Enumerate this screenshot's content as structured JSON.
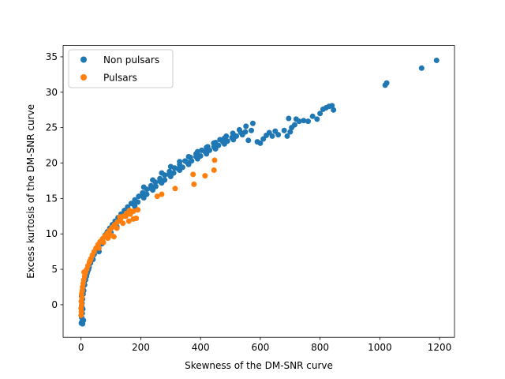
{
  "chart_data": {
    "type": "scatter",
    "title": "",
    "xlabel": "Skewness of the DM-SNR curve",
    "ylabel": "Excess kurtosis of the DM-SNR curve",
    "xlim": [
      -60,
      1250
    ],
    "ylim": [
      -4.6,
      36.6
    ],
    "xticks": [
      0,
      200,
      400,
      600,
      800,
      1000,
      1200
    ],
    "yticks": [
      0,
      5,
      10,
      15,
      20,
      25,
      30,
      35
    ],
    "grid": false,
    "legend_position": "upper-left",
    "series": [
      {
        "name": "Non pulsars",
        "color": "#1f77b4",
        "points": [
          [
            1,
            -2.6
          ],
          [
            3,
            -2.4
          ],
          [
            5,
            -2.7
          ],
          [
            8,
            -2.2
          ],
          [
            2,
            -1.8
          ],
          [
            4,
            -1.2
          ],
          [
            6,
            -0.6
          ],
          [
            3,
            0.2
          ],
          [
            5,
            0.8
          ],
          [
            7,
            1.5
          ],
          [
            9,
            2.0
          ],
          [
            12,
            2.8
          ],
          [
            15,
            3.5
          ],
          [
            18,
            4.0
          ],
          [
            22,
            4.7
          ],
          [
            27,
            5.3
          ],
          [
            32,
            5.9
          ],
          [
            38,
            6.5
          ],
          [
            44,
            7.1
          ],
          [
            50,
            7.6
          ],
          [
            57,
            8.2
          ],
          [
            64,
            8.7
          ],
          [
            72,
            9.3
          ],
          [
            80,
            9.8
          ],
          [
            88,
            10.3
          ],
          [
            96,
            10.8
          ],
          [
            105,
            11.3
          ],
          [
            114,
            11.8
          ],
          [
            124,
            12.3
          ],
          [
            134,
            12.8
          ],
          [
            145,
            13.3
          ],
          [
            156,
            13.8
          ],
          [
            168,
            14.3
          ],
          [
            180,
            14.8
          ],
          [
            193,
            15.3
          ],
          [
            206,
            15.8
          ],
          [
            220,
            16.3
          ],
          [
            234,
            16.8
          ],
          [
            249,
            17.3
          ],
          [
            264,
            17.8
          ],
          [
            280,
            18.3
          ],
          [
            296,
            18.8
          ],
          [
            313,
            19.3
          ],
          [
            330,
            19.8
          ],
          [
            348,
            20.3
          ],
          [
            366,
            20.8
          ],
          [
            385,
            21.3
          ],
          [
            404,
            21.8
          ],
          [
            424,
            22.3
          ],
          [
            444,
            22.8
          ],
          [
            465,
            23.3
          ],
          [
            486,
            23.8
          ],
          [
            508,
            24.2
          ],
          [
            530,
            24.7
          ],
          [
            552,
            25.2
          ],
          [
            575,
            25.6
          ],
          [
            60,
            7.5
          ],
          [
            90,
            9.5
          ],
          [
            120,
            11.0
          ],
          [
            150,
            12.6
          ],
          [
            180,
            13.9
          ],
          [
            210,
            15.1
          ],
          [
            240,
            16.2
          ],
          [
            270,
            17.2
          ],
          [
            300,
            18.1
          ],
          [
            330,
            19.0
          ],
          [
            360,
            19.8
          ],
          [
            390,
            20.6
          ],
          [
            420,
            21.3
          ],
          [
            450,
            22.0
          ],
          [
            480,
            22.7
          ],
          [
            510,
            23.3
          ],
          [
            540,
            24.0
          ],
          [
            570,
            24.6
          ],
          [
            40,
            6.4
          ],
          [
            70,
            8.6
          ],
          [
            100,
            10.2
          ],
          [
            130,
            11.9
          ],
          [
            160,
            13.1
          ],
          [
            190,
            14.5
          ],
          [
            220,
            15.6
          ],
          [
            250,
            16.7
          ],
          [
            280,
            17.6
          ],
          [
            310,
            18.6
          ],
          [
            340,
            19.4
          ],
          [
            370,
            20.3
          ],
          [
            400,
            21.0
          ],
          [
            430,
            21.8
          ],
          [
            460,
            22.5
          ],
          [
            490,
            23.1
          ],
          [
            520,
            23.8
          ],
          [
            550,
            24.4
          ],
          [
            25,
            5.0
          ],
          [
            55,
            7.9
          ],
          [
            85,
            10.0
          ],
          [
            115,
            11.6
          ],
          [
            145,
            12.9
          ],
          [
            175,
            14.2
          ],
          [
            205,
            15.4
          ],
          [
            235,
            16.4
          ],
          [
            265,
            17.4
          ],
          [
            295,
            18.4
          ],
          [
            325,
            19.2
          ],
          [
            355,
            20.1
          ],
          [
            385,
            20.9
          ],
          [
            415,
            21.6
          ],
          [
            445,
            22.3
          ],
          [
            475,
            23.0
          ],
          [
            505,
            23.6
          ],
          [
            535,
            24.3
          ],
          [
            210,
            16.6
          ],
          [
            240,
            17.6
          ],
          [
            270,
            18.6
          ],
          [
            300,
            19.5
          ],
          [
            330,
            20.2
          ],
          [
            360,
            20.9
          ],
          [
            390,
            21.6
          ],
          [
            420,
            22.2
          ],
          [
            450,
            22.9
          ],
          [
            480,
            23.5
          ],
          [
            560,
            23.2
          ],
          [
            590,
            23.0
          ],
          [
            600,
            22.8
          ],
          [
            610,
            23.4
          ],
          [
            620,
            23.9
          ],
          [
            630,
            24.3
          ],
          [
            640,
            23.8
          ],
          [
            650,
            24.5
          ],
          [
            660,
            24.0
          ],
          [
            680,
            24.6
          ],
          [
            690,
            23.8
          ],
          [
            700,
            24.4
          ],
          [
            705,
            25.0
          ],
          [
            715,
            25.4
          ],
          [
            730,
            25.9
          ],
          [
            745,
            26.0
          ],
          [
            760,
            25.9
          ],
          [
            775,
            26.6
          ],
          [
            790,
            26.2
          ],
          [
            800,
            27.0
          ],
          [
            810,
            27.6
          ],
          [
            820,
            27.8
          ],
          [
            830,
            28.0
          ],
          [
            840,
            28.1
          ],
          [
            845,
            27.5
          ],
          [
            720,
            26.2
          ],
          [
            695,
            26.3
          ],
          [
            1018,
            31.0
          ],
          [
            1023,
            31.3
          ],
          [
            1140,
            33.4
          ],
          [
            1190,
            34.5
          ],
          [
            2,
            -0.2
          ],
          [
            1,
            0.5
          ],
          [
            2,
            1.2
          ],
          [
            4,
            1.8
          ],
          [
            6,
            2.4
          ],
          [
            10,
            3.2
          ],
          [
            14,
            3.9
          ],
          [
            20,
            4.4
          ]
        ]
      },
      {
        "name": "Pulsars",
        "color": "#ff7f0e",
        "points": [
          [
            0,
            -1.5
          ],
          [
            1,
            -1.0
          ],
          [
            0,
            -0.5
          ],
          [
            2,
            0.0
          ],
          [
            1,
            0.5
          ],
          [
            3,
            1.0
          ],
          [
            2,
            1.5
          ],
          [
            4,
            2.0
          ],
          [
            5,
            2.5
          ],
          [
            7,
            3.0
          ],
          [
            9,
            3.5
          ],
          [
            12,
            4.0
          ],
          [
            15,
            4.5
          ],
          [
            19,
            5.0
          ],
          [
            23,
            5.5
          ],
          [
            28,
            6.0
          ],
          [
            33,
            6.5
          ],
          [
            38,
            7.0
          ],
          [
            44,
            7.5
          ],
          [
            50,
            8.0
          ],
          [
            57,
            8.5
          ],
          [
            64,
            8.9
          ],
          [
            72,
            9.3
          ],
          [
            80,
            9.7
          ],
          [
            88,
            10.1
          ],
          [
            96,
            10.5
          ],
          [
            104,
            10.9
          ],
          [
            113,
            11.3
          ],
          [
            122,
            11.7
          ],
          [
            132,
            12.1
          ],
          [
            142,
            12.5
          ],
          [
            152,
            12.9
          ],
          [
            162,
            13.3
          ],
          [
            175,
            13.2
          ],
          [
            190,
            13.4
          ],
          [
            120,
            10.8
          ],
          [
            140,
            11.5
          ],
          [
            160,
            11.8
          ],
          [
            175,
            12.1
          ],
          [
            185,
            12.2
          ],
          [
            100,
            9.8
          ],
          [
            110,
            9.6
          ],
          [
            90,
            9.4
          ],
          [
            255,
            15.3
          ],
          [
            270,
            15.6
          ],
          [
            315,
            16.4
          ],
          [
            378,
            17.0
          ],
          [
            375,
            18.4
          ],
          [
            415,
            18.2
          ],
          [
            445,
            19.0
          ],
          [
            447,
            20.4
          ],
          [
            10,
            4.6
          ],
          [
            30,
            6.2
          ],
          [
            60,
            8.0
          ],
          [
            75,
            8.8
          ],
          [
            130,
            12.4
          ],
          [
            150,
            12.5
          ],
          [
            165,
            12.8
          ]
        ]
      }
    ]
  }
}
